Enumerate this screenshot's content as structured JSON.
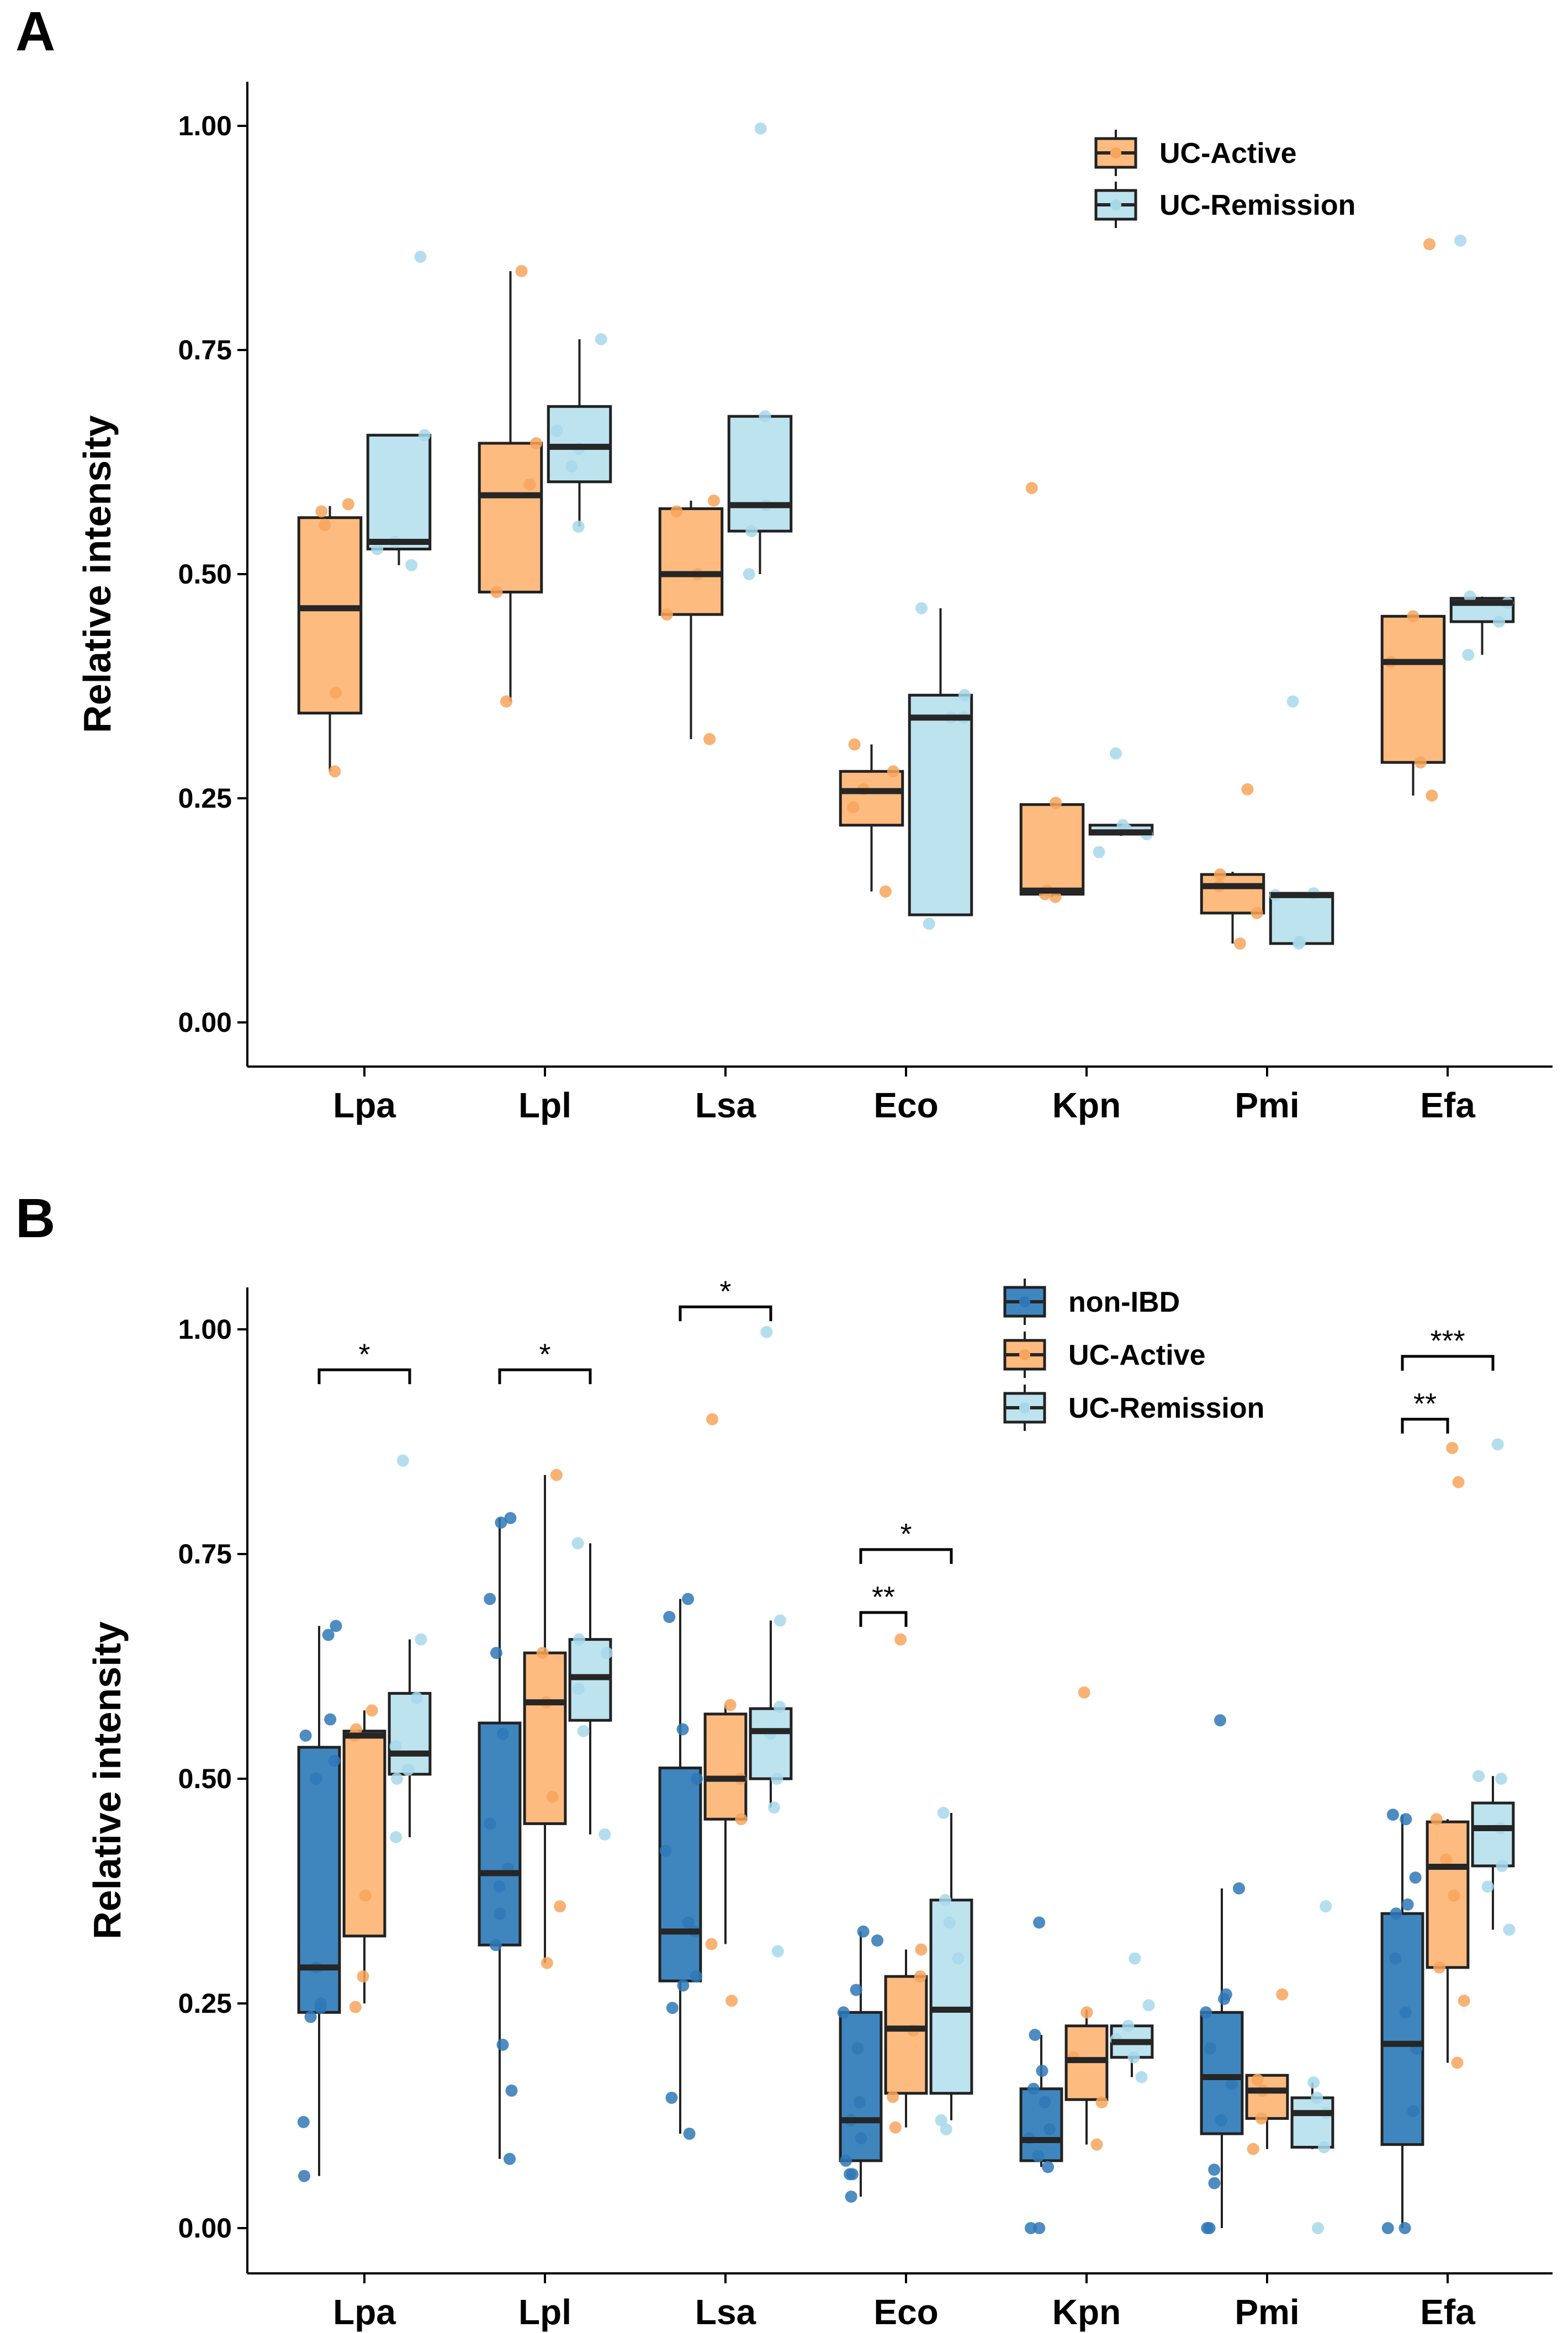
{
  "figure": {
    "panel_a_label": "A",
    "panel_b_label": "B"
  },
  "colors": {
    "non_ibd": "#3f86bf",
    "uc_active": "#fdbb7f",
    "uc_remission": "#bde3ef",
    "median": "#262626",
    "edge": "#222222",
    "non_ibd_pt": "#2f78b6",
    "uc_active_pt": "#f7a55c",
    "uc_remission_pt": "#a7d8ea"
  },
  "chart_data": [
    {
      "type": "boxplot",
      "panel": "A",
      "ylabel": "Relative intensity",
      "xlabel": "",
      "ylim": [
        -0.05,
        1.05
      ],
      "yticks": [
        "0.00",
        "0.25",
        "0.50",
        "0.75",
        "1.00"
      ],
      "categories": [
        "Lpa",
        "Lpl",
        "Lsa",
        "Eco",
        "Kpn",
        "Pmi",
        "Efa"
      ],
      "legend": [
        "UC-Active",
        "UC-Remission"
      ],
      "legend_position": "top-right",
      "series": [
        {
          "name": "UC-Active",
          "color_key": "uc_active",
          "boxes": [
            {
              "cat": "Lpa",
              "lw": 0.28,
              "q1": 0.345,
              "med": 0.462,
              "q3": 0.563,
              "uw": 0.576,
              "pts": [
                0.28,
                0.368,
                0.555,
                0.578,
                0.57
              ]
            },
            {
              "cat": "Lpl",
              "lw": 0.358,
              "q1": 0.48,
              "med": 0.588,
              "q3": 0.646,
              "uw": 0.838,
              "pts": [
                0.358,
                0.48,
                0.646,
                0.838,
                0.6
              ]
            },
            {
              "cat": "Lsa",
              "lw": 0.316,
              "q1": 0.455,
              "med": 0.5,
              "q3": 0.573,
              "uw": 0.582,
              "pts": [
                0.316,
                0.455,
                0.5,
                0.582,
                0.57
              ]
            },
            {
              "cat": "Eco",
              "lw": 0.146,
              "q1": 0.22,
              "med": 0.258,
              "q3": 0.28,
              "uw": 0.31,
              "pts": [
                0.146,
                0.24,
                0.28,
                0.31,
                0.26
              ]
            },
            {
              "cat": "Kpn",
              "lw": 0.14,
              "q1": 0.143,
              "med": 0.147,
              "q3": 0.243,
              "uw": 0.245,
              "pts": [
                0.14,
                0.143,
                0.147,
                0.245,
                0.596
              ]
            },
            {
              "cat": "Pmi",
              "lw": 0.088,
              "q1": 0.122,
              "med": 0.152,
              "q3": 0.165,
              "uw": 0.168,
              "pts": [
                0.088,
                0.122,
                0.152,
                0.165,
                0.26
              ]
            },
            {
              "cat": "Efa",
              "lw": 0.253,
              "q1": 0.29,
              "med": 0.402,
              "q3": 0.453,
              "uw": 0.455,
              "pts": [
                0.253,
                0.29,
                0.402,
                0.453,
                0.868
              ]
            }
          ]
        },
        {
          "name": "UC-Remission",
          "color_key": "uc_remission",
          "boxes": [
            {
              "cat": "Lpa",
              "lw": 0.51,
              "q1": 0.528,
              "med": 0.536,
              "q3": 0.655,
              "uw": 0.655,
              "pts": [
                0.51,
                0.528,
                0.536,
                0.655,
                0.854
              ]
            },
            {
              "cat": "Lpl",
              "lw": 0.553,
              "q1": 0.603,
              "med": 0.642,
              "q3": 0.687,
              "uw": 0.762,
              "pts": [
                0.553,
                0.62,
                0.64,
                0.66,
                0.762
              ]
            },
            {
              "cat": "Lsa",
              "lw": 0.5,
              "q1": 0.548,
              "med": 0.577,
              "q3": 0.676,
              "uw": 0.676,
              "pts": [
                0.5,
                0.548,
                0.577,
                0.676,
                0.997
              ]
            },
            {
              "cat": "Eco",
              "lw": 0.12,
              "q1": 0.12,
              "med": 0.34,
              "q3": 0.365,
              "uw": 0.462,
              "pts": [
                0.11,
                0.34,
                0.365,
                0.462,
                0.34
              ]
            },
            {
              "cat": "Kpn",
              "lw": 0.208,
              "q1": 0.21,
              "med": 0.212,
              "q3": 0.22,
              "uw": 0.22,
              "pts": [
                0.19,
                0.21,
                0.22,
                0.3,
                0.215
              ]
            },
            {
              "cat": "Pmi",
              "lw": 0.088,
              "q1": 0.088,
              "med": 0.142,
              "q3": 0.144,
              "uw": 0.144,
              "pts": [
                0.088,
                0.09,
                0.142,
                0.144,
                0.358
              ]
            },
            {
              "cat": "Efa",
              "lw": 0.41,
              "q1": 0.447,
              "med": 0.468,
              "q3": 0.473,
              "uw": 0.475,
              "pts": [
                0.41,
                0.447,
                0.468,
                0.475,
                0.872
              ]
            }
          ]
        }
      ]
    },
    {
      "type": "boxplot",
      "panel": "B",
      "ylabel": "Relative intensity",
      "xlabel": "",
      "ylim": [
        -0.05,
        1.05
      ],
      "yticks": [
        "0.00",
        "0.25",
        "0.50",
        "0.75",
        "1.00"
      ],
      "categories": [
        "Lpa",
        "Lpl",
        "Lsa",
        "Eco",
        "Kpn",
        "Pmi",
        "Efa"
      ],
      "legend": [
        "non-IBD",
        "UC-Active",
        "UC-Remission"
      ],
      "legend_position": "top-right",
      "series": [
        {
          "name": "non-IBD",
          "color_key": "non_ibd",
          "boxes": [
            {
              "cat": "Lpa",
              "lw": 0.058,
              "q1": 0.24,
              "med": 0.29,
              "q3": 0.535,
              "uw": 0.67,
              "pts": [
                0.058,
                0.118,
                0.235,
                0.245,
                0.25,
                0.29,
                0.5,
                0.52,
                0.548,
                0.566,
                0.66,
                0.67
              ]
            },
            {
              "cat": "Lpl",
              "lw": 0.077,
              "q1": 0.315,
              "med": 0.395,
              "q3": 0.562,
              "uw": 0.79,
              "pts": [
                0.077,
                0.153,
                0.204,
                0.315,
                0.35,
                0.38,
                0.4,
                0.45,
                0.55,
                0.64,
                0.7,
                0.79,
                0.785
              ]
            },
            {
              "cat": "Lsa",
              "lw": 0.105,
              "q1": 0.275,
              "med": 0.33,
              "q3": 0.512,
              "uw": 0.7,
              "pts": [
                0.105,
                0.145,
                0.245,
                0.27,
                0.28,
                0.33,
                0.34,
                0.42,
                0.5,
                0.555,
                0.68,
                0.7
              ]
            },
            {
              "cat": "Eco",
              "lw": 0.035,
              "q1": 0.075,
              "med": 0.12,
              "q3": 0.24,
              "uw": 0.33,
              "pts": [
                0.035,
                0.06,
                0.06,
                0.075,
                0.1,
                0.12,
                0.14,
                0.2,
                0.24,
                0.265,
                0.32,
                0.33
              ]
            },
            {
              "cat": "Kpn",
              "lw": 0.068,
              "q1": 0.075,
              "med": 0.098,
              "q3": 0.155,
              "uw": 0.215,
              "pts": [
                0.0,
                0.0,
                0.068,
                0.08,
                0.1,
                0.11,
                0.14,
                0.155,
                0.175,
                0.215,
                0.34
              ]
            },
            {
              "cat": "Pmi",
              "lw": 0.0,
              "q1": 0.105,
              "med": 0.168,
              "q3": 0.24,
              "uw": 0.378,
              "pts": [
                0.0,
                0.0,
                0.05,
                0.065,
                0.12,
                0.16,
                0.2,
                0.24,
                0.255,
                0.26,
                0.378,
                0.565
              ]
            },
            {
              "cat": "Efa",
              "lw": 0.0,
              "q1": 0.093,
              "med": 0.205,
              "q3": 0.35,
              "uw": 0.46,
              "pts": [
                0.0,
                0.0,
                0.13,
                0.2,
                0.24,
                0.3,
                0.35,
                0.36,
                0.39,
                0.455,
                0.46
              ]
            }
          ]
        },
        {
          "name": "UC-Active",
          "color_key": "uc_active",
          "boxes": [
            {
              "cat": "Lpa",
              "lw": 0.25,
              "q1": 0.325,
              "med": 0.548,
              "q3": 0.553,
              "uw": 0.576,
              "pts": [
                0.246,
                0.28,
                0.37,
                0.555,
                0.576,
                0.548
              ]
            },
            {
              "cat": "Lpl",
              "lw": 0.295,
              "q1": 0.45,
              "med": 0.585,
              "q3": 0.64,
              "uw": 0.838,
              "pts": [
                0.295,
                0.358,
                0.48,
                0.585,
                0.64,
                0.838
              ]
            },
            {
              "cat": "Lsa",
              "lw": 0.316,
              "q1": 0.455,
              "med": 0.5,
              "q3": 0.572,
              "uw": 0.582,
              "pts": [
                0.253,
                0.316,
                0.455,
                0.5,
                0.582,
                0.9
              ]
            },
            {
              "cat": "Eco",
              "lw": 0.112,
              "q1": 0.15,
              "med": 0.222,
              "q3": 0.28,
              "uw": 0.31,
              "pts": [
                0.112,
                0.146,
                0.22,
                0.28,
                0.31,
                0.655
              ]
            },
            {
              "cat": "Kpn",
              "lw": 0.093,
              "q1": 0.143,
              "med": 0.187,
              "q3": 0.225,
              "uw": 0.243,
              "pts": [
                0.093,
                0.14,
                0.19,
                0.24,
                0.596
              ]
            },
            {
              "cat": "Pmi",
              "lw": 0.088,
              "q1": 0.122,
              "med": 0.153,
              "q3": 0.17,
              "uw": 0.17,
              "pts": [
                0.088,
                0.122,
                0.153,
                0.165,
                0.26
              ]
            },
            {
              "cat": "Efa",
              "lw": 0.184,
              "q1": 0.29,
              "med": 0.402,
              "q3": 0.452,
              "uw": 0.455,
              "pts": [
                0.184,
                0.253,
                0.29,
                0.37,
                0.41,
                0.455,
                0.83,
                0.868
              ]
            }
          ]
        },
        {
          "name": "UC-Remission",
          "color_key": "uc_remission",
          "boxes": [
            {
              "cat": "Lpa",
              "lw": 0.435,
              "q1": 0.505,
              "med": 0.528,
              "q3": 0.595,
              "uw": 0.655,
              "pts": [
                0.435,
                0.5,
                0.51,
                0.536,
                0.59,
                0.655,
                0.854
              ]
            },
            {
              "cat": "Lpl",
              "lw": 0.438,
              "q1": 0.565,
              "med": 0.613,
              "q3": 0.655,
              "uw": 0.762,
              "pts": [
                0.438,
                0.553,
                0.6,
                0.64,
                0.655,
                0.762
              ]
            },
            {
              "cat": "Lsa",
              "lw": 0.468,
              "q1": 0.5,
              "med": 0.553,
              "q3": 0.578,
              "uw": 0.676,
              "pts": [
                0.308,
                0.468,
                0.5,
                0.55,
                0.58,
                0.676,
                0.997
              ]
            },
            {
              "cat": "Eco",
              "lw": 0.12,
              "q1": 0.15,
              "med": 0.243,
              "q3": 0.365,
              "uw": 0.462,
              "pts": [
                0.11,
                0.12,
                0.34,
                0.365,
                0.462,
                0.3
              ]
            },
            {
              "cat": "Kpn",
              "lw": 0.168,
              "q1": 0.19,
              "med": 0.207,
              "q3": 0.225,
              "uw": 0.225,
              "pts": [
                0.168,
                0.19,
                0.21,
                0.225,
                0.248,
                0.3
              ]
            },
            {
              "cat": "Pmi",
              "lw": 0.088,
              "q1": 0.09,
              "med": 0.128,
              "q3": 0.145,
              "uw": 0.162,
              "pts": [
                0.0,
                0.09,
                0.128,
                0.145,
                0.162,
                0.358
              ]
            },
            {
              "cat": "Efa",
              "lw": 0.332,
              "q1": 0.403,
              "med": 0.445,
              "q3": 0.473,
              "uw": 0.503,
              "pts": [
                0.332,
                0.38,
                0.403,
                0.445,
                0.5,
                0.503,
                0.872
              ]
            }
          ]
        }
      ],
      "significance": [
        {
          "cat": "Lpa",
          "from": "non-IBD",
          "to": "UC-Remission",
          "y": 0.955,
          "label": "*"
        },
        {
          "cat": "Lpl",
          "from": "non-IBD",
          "to": "UC-Remission",
          "y": 0.955,
          "label": "*"
        },
        {
          "cat": "Lsa",
          "from": "non-IBD",
          "to": "UC-Remission",
          "y": 1.025,
          "label": "*"
        },
        {
          "cat": "Eco",
          "from": "non-IBD",
          "to": "UC-Active",
          "y": 0.685,
          "label": "**"
        },
        {
          "cat": "Eco",
          "from": "non-IBD",
          "to": "UC-Remission",
          "y": 0.755,
          "label": "*"
        },
        {
          "cat": "Efa",
          "from": "non-IBD",
          "to": "UC-Active",
          "y": 0.9,
          "label": "**"
        },
        {
          "cat": "Efa",
          "from": "non-IBD",
          "to": "UC-Remission",
          "y": 0.97,
          "label": "***"
        }
      ]
    }
  ]
}
